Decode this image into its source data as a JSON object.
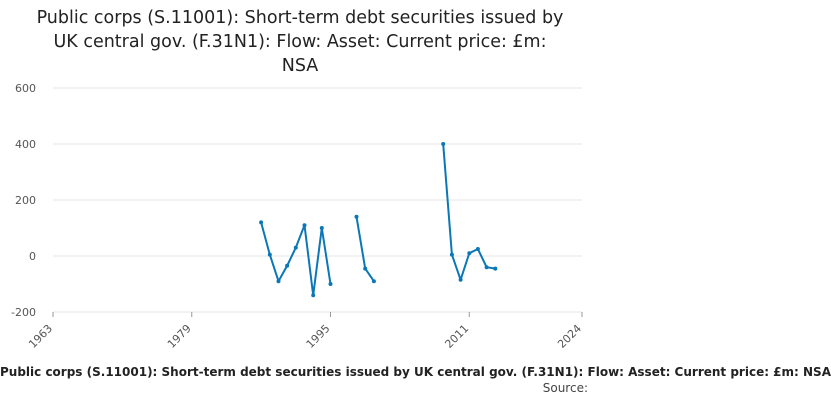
{
  "chart_data": {
    "type": "line",
    "title_lines": [
      "Public corps (S.11001): Short-term debt securities issued by",
      "UK central gov. (F.31N1): Flow: Asset: Current price: £m:",
      "NSA"
    ],
    "xlabel": "Public corps (S.11001): Short-term debt securities issued by UK central gov. (F.31N1): Flow: Asset: Current price: £m: NSA",
    "source_label": "Source:",
    "xlim": [
      1963,
      2024
    ],
    "ylim": [
      -200,
      600
    ],
    "x_ticks": [
      "1963",
      "1979",
      "1995",
      "2011",
      "2024"
    ],
    "y_ticks": [
      "600",
      "400",
      "200",
      "0",
      "-200"
    ],
    "grid": "horizontal",
    "line_color": "#0b77b7",
    "series": [
      {
        "segments": [
          [
            [
              1987,
              120
            ],
            [
              1988,
              5
            ],
            [
              1989,
              -90
            ],
            [
              1990,
              -35
            ],
            [
              1991,
              30
            ],
            [
              1992,
              110
            ],
            [
              1993,
              -140
            ],
            [
              1994,
              100
            ],
            [
              1995,
              -100
            ]
          ],
          [
            [
              1998,
              140
            ],
            [
              1999,
              -45
            ],
            [
              2000,
              -90
            ]
          ],
          [
            [
              2008,
              400
            ],
            [
              2009,
              5
            ],
            [
              2010,
              -85
            ],
            [
              2011,
              10
            ],
            [
              2012,
              25
            ],
            [
              2013,
              -40
            ],
            [
              2014,
              -45
            ]
          ]
        ]
      }
    ]
  }
}
